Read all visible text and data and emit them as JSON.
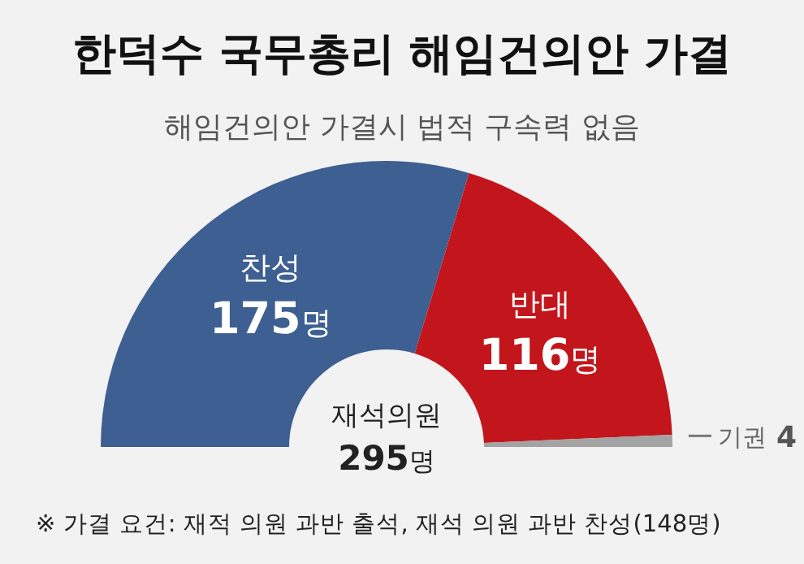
{
  "chart_data": {
    "type": "donut",
    "title": "한덕수 국무총리 해임건의안 가결",
    "subtitle": "해임건의안 가결시 법적 구속력 없음",
    "categories": [
      "찬성",
      "반대",
      "기권"
    ],
    "values": [
      175,
      116,
      4
    ],
    "colors": [
      "#3d5f91",
      "#c3161c",
      "#a3a3a3"
    ],
    "value_labels": [
      "175명",
      "116명",
      "4"
    ],
    "annotations": [
      "재석의원 295명",
      "※ 가결 요건: 재적 의원 과반 출석, 재석 의원 과반 찬성(148명)"
    ]
  }
}
